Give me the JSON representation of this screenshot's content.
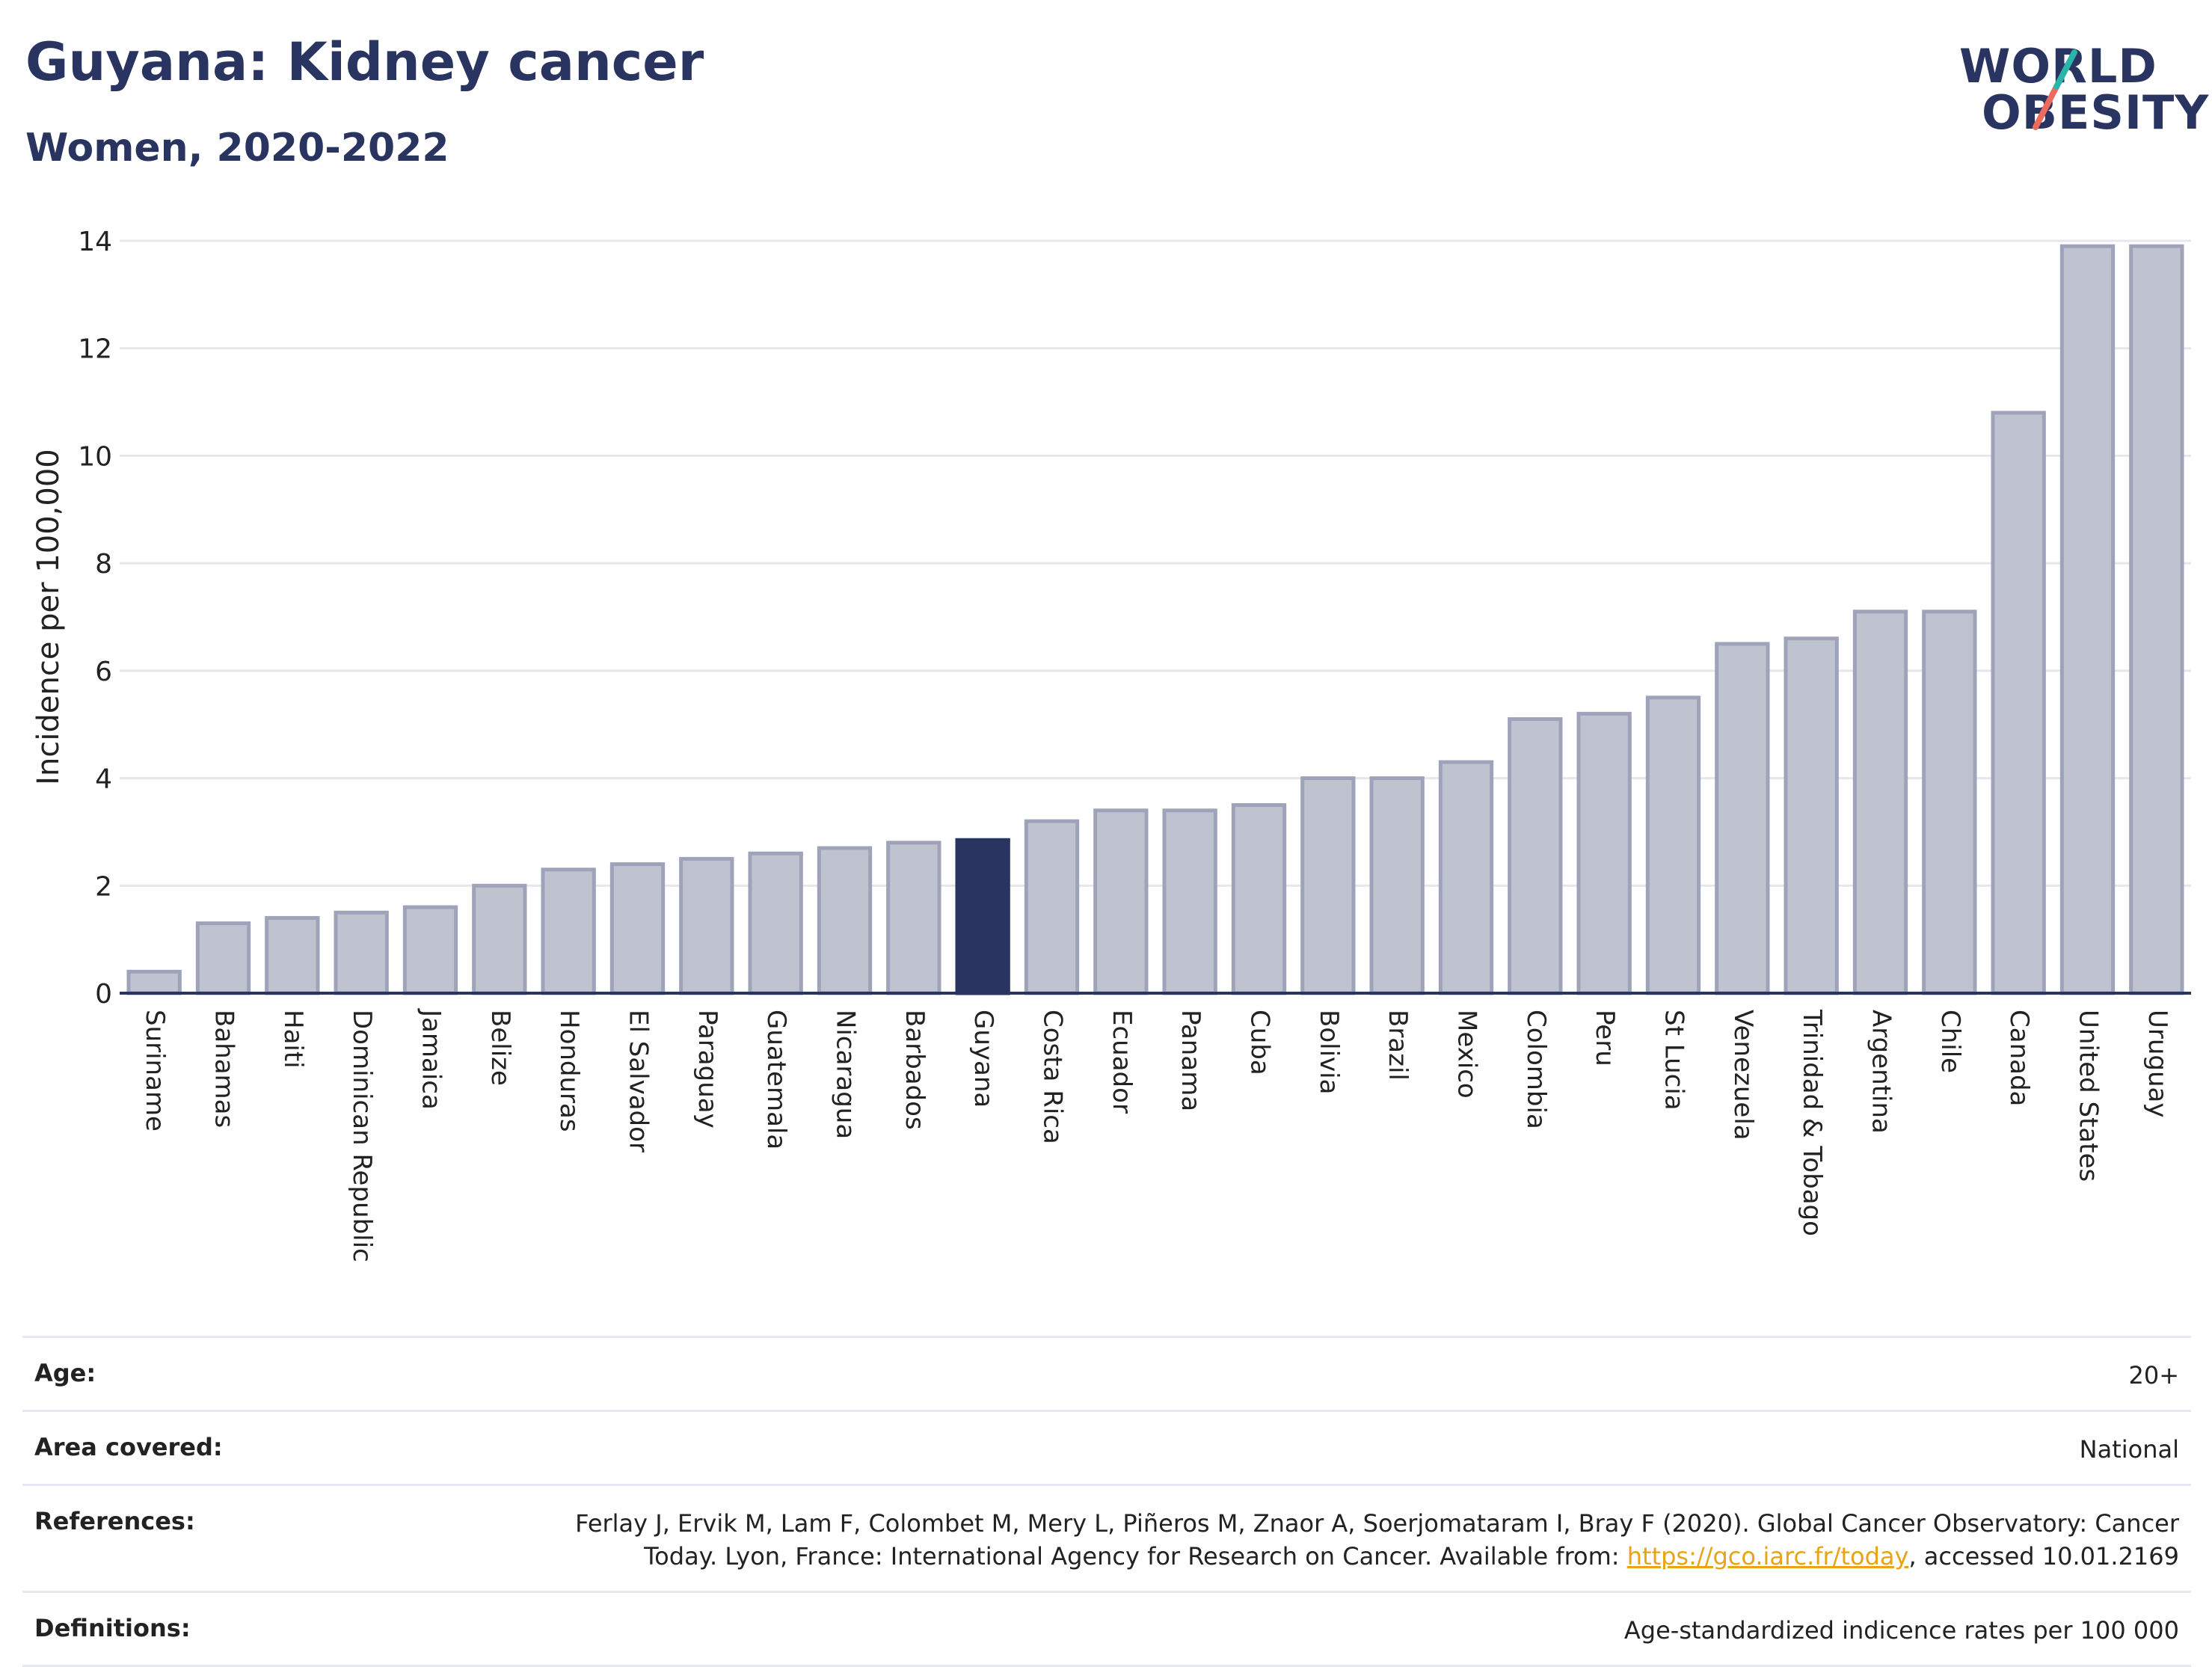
{
  "header": {
    "title": "Guyana: Kidney cancer",
    "subtitle": "Women, 2020-2022"
  },
  "logo": {
    "line1": "WORLD",
    "line2": "OBESITY",
    "text_color": "#2a3461",
    "accent_teal": "#2ab5a9",
    "accent_coral": "#ec6a5e"
  },
  "colors": {
    "bar_default": "#bfc3d0",
    "bar_border": "#9ea3ba",
    "bar_highlight": "#2a3461"
  },
  "chart_data": {
    "type": "bar",
    "ylabel": "Incidence per 100,000",
    "ylim": [
      0,
      14
    ],
    "yticks": [
      0,
      2,
      4,
      6,
      8,
      10,
      12,
      14
    ],
    "grid": true,
    "highlight": "Guyana",
    "categories": [
      "Suriname",
      "Bahamas",
      "Haiti",
      "Dominican Republic",
      "Jamaica",
      "Belize",
      "Honduras",
      "El Salvador",
      "Paraguay",
      "Guatemala",
      "Nicaragua",
      "Barbados",
      "Guyana",
      "Costa Rica",
      "Ecuador",
      "Panama",
      "Cuba",
      "Bolivia",
      "Brazil",
      "Mexico",
      "Colombia",
      "Peru",
      "St Lucia",
      "Venezuela",
      "Trinidad & Tobago",
      "Argentina",
      "Chile",
      "Canada",
      "United States",
      "Uruguay"
    ],
    "values": [
      0.4,
      1.3,
      1.4,
      1.5,
      1.6,
      2.0,
      2.3,
      2.4,
      2.5,
      2.6,
      2.7,
      2.8,
      2.85,
      3.2,
      3.4,
      3.4,
      3.5,
      4.0,
      4.0,
      4.3,
      5.1,
      5.2,
      5.5,
      6.5,
      6.6,
      7.1,
      7.1,
      10.8,
      13.9,
      13.9
    ]
  },
  "meta": {
    "age_label": "Age:",
    "age_value": "20+",
    "area_label": "Area covered:",
    "area_value": "National",
    "references_label": "References:",
    "references_text_1": "Ferlay J, Ervik M, Lam F, Colombet M, Mery L, Piñeros M, Znaor A, Soerjomataram I, Bray F (2020). Global Cancer Observatory: Cancer Today. Lyon, France: International Agency for Research on Cancer. Available from: ",
    "references_link": "https://gco.iarc.fr/today",
    "references_text_2": ", accessed 10.01.2169",
    "definitions_label": "Definitions:",
    "definitions_value": "Age-standardized indicence rates per 100 000"
  }
}
